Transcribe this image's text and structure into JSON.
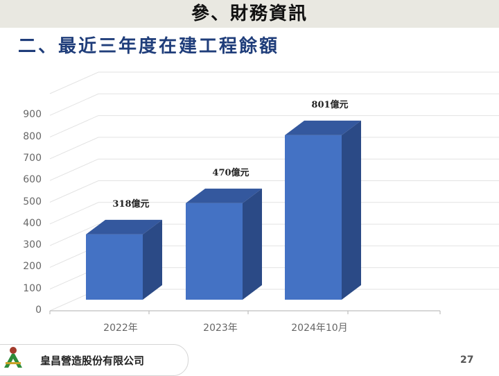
{
  "header": {
    "title": "參、財務資訊"
  },
  "subtitle": "二、最近三年度在建工程餘額",
  "footer": {
    "company": "皇昌營造股份有限公司",
    "page_number": "27",
    "logo_icon": "company-logo-icon"
  },
  "colors": {
    "bar_front": "#4472c4",
    "bar_side": "#2b4a86",
    "bar_top": "#34589e",
    "header_band": "#e9e8e1",
    "subtitle": "#1f3d7a"
  },
  "chart_data": {
    "type": "bar",
    "title": "最近三年度在建工程餘額",
    "categories": [
      "2022年",
      "2023年",
      "2024年10月"
    ],
    "values": [
      318,
      470,
      801
    ],
    "data_labels": [
      "318億元",
      "470億元",
      "801億元"
    ],
    "unit": "億元",
    "xlabel": "",
    "ylabel": "",
    "ylim": [
      0,
      900
    ],
    "yticks": [
      "0",
      "100",
      "200",
      "300",
      "400",
      "500",
      "600",
      "700",
      "800",
      "900"
    ],
    "grid": true,
    "style": "3d-column",
    "legend": "none"
  }
}
